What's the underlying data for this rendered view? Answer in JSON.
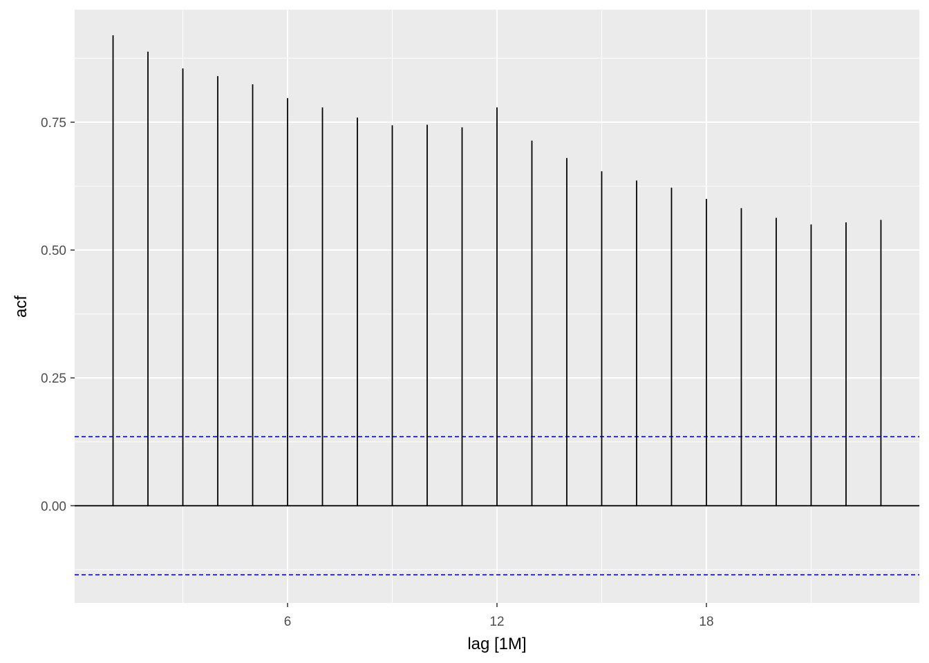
{
  "chart_data": {
    "type": "bar",
    "xlabel": "lag [1M]",
    "ylabel": "acf",
    "x": [
      1,
      2,
      3,
      4,
      5,
      6,
      7,
      8,
      9,
      10,
      11,
      12,
      13,
      14,
      15,
      16,
      17,
      18,
      19,
      20,
      21,
      22,
      23
    ],
    "values": [
      0.92,
      0.888,
      0.855,
      0.84,
      0.824,
      0.797,
      0.779,
      0.759,
      0.744,
      0.745,
      0.74,
      0.779,
      0.714,
      0.68,
      0.654,
      0.636,
      0.622,
      0.6,
      0.582,
      0.563,
      0.55,
      0.554,
      0.559
    ],
    "xlim": [
      -0.1,
      24.1
    ],
    "ylim": [
      -0.19,
      0.97
    ],
    "x_ticks": [
      6,
      12,
      18
    ],
    "x_tick_labels": [
      "6",
      "12",
      "18"
    ],
    "y_ticks": [
      0,
      0.25,
      0.5,
      0.75
    ],
    "y_tick_labels": [
      "0.00",
      "0.25",
      "0.50",
      "0.75"
    ],
    "confidence_limit": 0.135,
    "grid": true,
    "colors": {
      "panel": "#ebebeb",
      "grid": "#ffffff",
      "bars": "#000000",
      "confidence": "#0000cc",
      "tick_text": "#4d4d4d"
    }
  }
}
